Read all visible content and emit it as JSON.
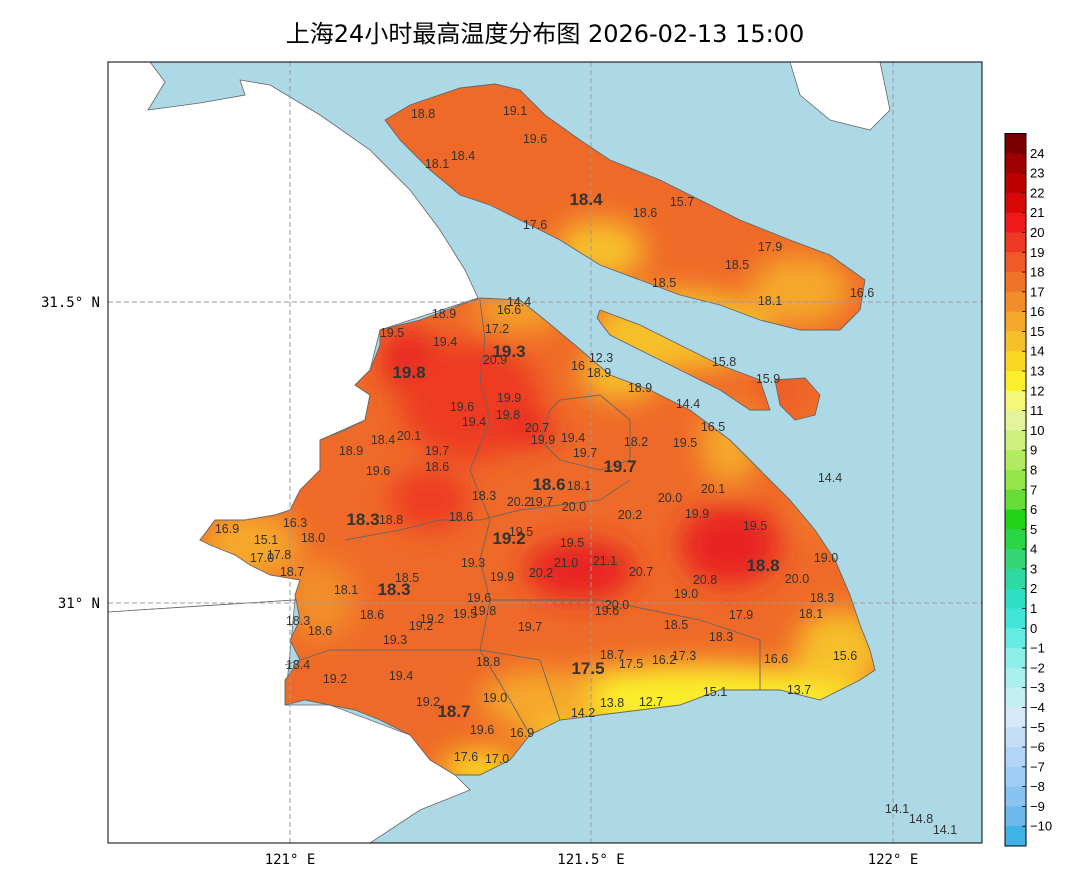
{
  "title": "上海24小时最高温度分布图 2026-02-13 15:00",
  "axes": {
    "lat_labels": [
      "31.5° N",
      "31° N"
    ],
    "lon_labels": [
      "121° E",
      "121.5° E",
      "122° E"
    ]
  },
  "colorbar": {
    "labels": [
      "24",
      "23",
      "22",
      "21",
      "20",
      "19",
      "18",
      "17",
      "16",
      "15",
      "14",
      "13",
      "12",
      "11",
      "10",
      "9",
      "8",
      "7",
      "6",
      "5",
      "4",
      "3",
      "2",
      "1",
      "0",
      "−1",
      "−2",
      "−3",
      "−4",
      "−5",
      "−6",
      "−7",
      "−8",
      "−9",
      "−10"
    ],
    "colors": [
      "#7a0000",
      "#9c0000",
      "#bb0000",
      "#d80808",
      "#ee1a1a",
      "#ee3a22",
      "#ef5a26",
      "#f07428",
      "#f28e2a",
      "#f5a82c",
      "#f7c02a",
      "#f9d824",
      "#fbee2a",
      "#f4f77a",
      "#e2f59a",
      "#cdf07e",
      "#b2eb62",
      "#93e64c",
      "#66dd36",
      "#22d418",
      "#28d646",
      "#34d776",
      "#2fd9a2",
      "#2edfc4",
      "#40e5d8",
      "#66ebe2",
      "#8ceee8",
      "#a8efee",
      "#c2eff2",
      "#d6e9f8",
      "#c4def7",
      "#b2d5f7",
      "#9ecdf5",
      "#88c3f2",
      "#6cb9ef",
      "#3fb2e6"
    ]
  },
  "stations": [
    {
      "label": "18.8"
    },
    {
      "label": "19.1"
    },
    {
      "label": "19.6"
    },
    {
      "label": "18.1"
    },
    {
      "label": "18.4"
    },
    {
      "label": "18.4"
    },
    {
      "label": "18.6"
    },
    {
      "label": "15.7"
    },
    {
      "label": "17.6"
    },
    {
      "label": "17.9"
    },
    {
      "label": "18.5"
    },
    {
      "label": "18.5"
    },
    {
      "label": "18.1"
    },
    {
      "label": "16.6"
    },
    {
      "label": "15.8"
    },
    {
      "label": "15.9"
    },
    {
      "label": "14.4"
    },
    {
      "label": "16.6"
    },
    {
      "label": "18.9"
    },
    {
      "label": "17.2"
    },
    {
      "label": "19.5"
    },
    {
      "label": "19.4"
    },
    {
      "label": "19.3"
    },
    {
      "label": "20.9"
    },
    {
      "label": "19.8"
    },
    {
      "label": "12.3"
    },
    {
      "label": "16"
    },
    {
      "label": "18.9"
    },
    {
      "label": "18.9"
    },
    {
      "label": "14.4"
    },
    {
      "label": "19.9"
    },
    {
      "label": "19.6"
    },
    {
      "label": "19.8"
    },
    {
      "label": "19.4"
    },
    {
      "label": "20.7"
    },
    {
      "label": "16.5"
    },
    {
      "label": "18.4"
    },
    {
      "label": "20.1"
    },
    {
      "label": "19.9"
    },
    {
      "label": "19.4"
    },
    {
      "label": "18.2"
    },
    {
      "label": "19.5"
    },
    {
      "label": "18.9"
    },
    {
      "label": "19.7"
    },
    {
      "label": "19.7"
    },
    {
      "label": "18.6"
    },
    {
      "label": "19.6"
    },
    {
      "label": "19.7"
    },
    {
      "label": "14.4"
    },
    {
      "label": "18.6"
    },
    {
      "label": "18.1"
    },
    {
      "label": "18.3"
    },
    {
      "label": "20.0"
    },
    {
      "label": "20.1"
    },
    {
      "label": "20.2"
    },
    {
      "label": "19.7"
    },
    {
      "label": "20.0"
    },
    {
      "label": "18.3"
    },
    {
      "label": "18.8"
    },
    {
      "label": "16.9"
    },
    {
      "label": "16.3"
    },
    {
      "label": "18.0"
    },
    {
      "label": "18.6"
    },
    {
      "label": "20.2"
    },
    {
      "label": "19.9"
    },
    {
      "label": "19.5"
    },
    {
      "label": "19.5"
    },
    {
      "label": "19.2"
    },
    {
      "label": "15.1"
    },
    {
      "label": "17.8"
    },
    {
      "label": "17.0"
    },
    {
      "label": "18.7"
    },
    {
      "label": "19.5"
    },
    {
      "label": "19.0"
    },
    {
      "label": "19.3"
    },
    {
      "label": "21.0"
    },
    {
      "label": "21.1"
    },
    {
      "label": "20.2"
    },
    {
      "label": "19.9"
    },
    {
      "label": "20.7"
    },
    {
      "label": "18.8"
    },
    {
      "label": "20.8"
    },
    {
      "label": "20.0"
    },
    {
      "label": "18.5"
    },
    {
      "label": "18.1"
    },
    {
      "label": "18.3"
    },
    {
      "label": "19.0"
    },
    {
      "label": "18.3"
    },
    {
      "label": "20.0"
    },
    {
      "label": "19.6"
    },
    {
      "label": "19.8"
    },
    {
      "label": "19.5"
    },
    {
      "label": "19.6"
    },
    {
      "label": "18.6"
    },
    {
      "label": "19.2"
    },
    {
      "label": "19.2"
    },
    {
      "label": "18.1"
    },
    {
      "label": "17.9"
    },
    {
      "label": "18.3"
    },
    {
      "label": "18.6"
    },
    {
      "label": "19.7"
    },
    {
      "label": "18.5"
    },
    {
      "label": "18.3"
    },
    {
      "label": "19.3"
    },
    {
      "label": "18.7"
    },
    {
      "label": "17.5"
    },
    {
      "label": "16.2"
    },
    {
      "label": "17.3"
    },
    {
      "label": "16.6"
    },
    {
      "label": "15.6"
    },
    {
      "label": "18.8"
    },
    {
      "label": "17.5"
    },
    {
      "label": "18.4"
    },
    {
      "label": "19.4"
    },
    {
      "label": "19.2"
    },
    {
      "label": "15.1"
    },
    {
      "label": "13.7"
    },
    {
      "label": "19.2"
    },
    {
      "label": "19.0"
    },
    {
      "label": "13.8"
    },
    {
      "label": "12.7"
    },
    {
      "label": "14.2"
    },
    {
      "label": "18.7"
    },
    {
      "label": "19.6"
    },
    {
      "label": "16.9"
    },
    {
      "label": "17.6"
    },
    {
      "label": "17.0"
    },
    {
      "label": "14.1"
    },
    {
      "label": "14.8"
    },
    {
      "label": "14.1"
    }
  ]
}
